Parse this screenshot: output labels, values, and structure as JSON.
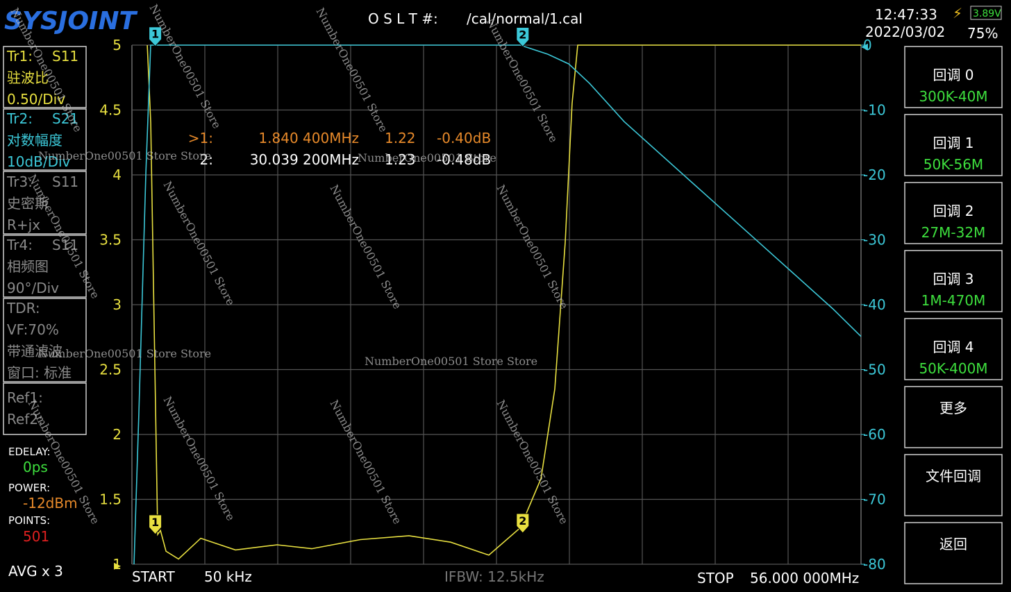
{
  "header": {
    "logo": "SYSJOINT",
    "cal_label": "O S L T #:",
    "cal_file": "/cal/normal/1.cal",
    "time": "12:47:33",
    "date": "2022/03/02",
    "battery_voltage": "3.89V",
    "battery_percent": "75%"
  },
  "traces": [
    {
      "id": "Tr1:",
      "format": "驻波比",
      "scale": "0.50/Div"
    },
    {
      "id": "Tr2:",
      "format": "对数幅度",
      "scale": "10dB/Div"
    },
    {
      "id": "Tr3:",
      "param": "S11",
      "format": "史密斯",
      "scale": "R+jx"
    },
    {
      "id": "Tr4:",
      "param": "S11",
      "format": "相频图",
      "scale": "90°/Div"
    }
  ],
  "tdr": {
    "title": "TDR:",
    "vf": "VF:70%",
    "filter": "带通滤波",
    "window": "窗口: 标准"
  },
  "refs": [
    "Ref1:",
    "Ref2:"
  ],
  "status": {
    "edelay_label": "EDELAY:",
    "edelay": "0ps",
    "power_label": "POWER:",
    "power": "-12dBm",
    "points_label": "POINTS:",
    "points": "501",
    "avg": "AVG x 3"
  },
  "buttons": [
    {
      "title": "回调 0",
      "range": "300K-40M"
    },
    {
      "title": "回调 1",
      "range": "50K-56M"
    },
    {
      "title": "回调 2",
      "range": "27M-32M"
    },
    {
      "title": "回调 3",
      "range": "1M-470M"
    },
    {
      "title": "回调 4",
      "range": "50K-400M"
    },
    {
      "title": "更多"
    },
    {
      "title": "文件回调"
    },
    {
      "title": "返回"
    }
  ],
  "footer": {
    "start_label": "START",
    "start": "50 kHz",
    "ifbw": "IFBW: 12.5kHz",
    "stop_label": "STOP",
    "stop": "56.000 000MHz"
  },
  "watermarks": [
    "NumberOne00501 Store",
    "NumberOne00501 Store",
    "NumberOne00501 Store",
    "NumberOne00501 Store",
    "NumberOne00501 Store",
    "NumberOne00501 Store",
    "NumberOne00501 Store",
    "NumberOne00501 Store",
    "NumberOne00501 Store",
    "NumberOne00501 Store",
    "NumberOne00501 Store",
    "NumberOne00501 Store",
    "NumberOne00501 Store Store",
    "NumberOne00501 Store",
    "NumberOne00501 Store Store",
    "NumberOne00501 Store Store"
  ],
  "chart_data": {
    "type": "line",
    "xlim": [
      0.05,
      56
    ],
    "ylim": [
      1,
      5
    ],
    "yticks": [
      1,
      1.5,
      2,
      2.5,
      3,
      3.5,
      4,
      4.5,
      5
    ],
    "y2lim": [
      -80,
      0
    ],
    "y2ticks": [
      0,
      -10,
      -20,
      -30,
      -40,
      -50,
      -60,
      -70,
      -80
    ],
    "grid": true,
    "series": [
      {
        "name": "S11",
        "color": "#e8e040",
        "x": [
          1.226,
          1.492,
          2.025,
          2.238,
          2.664,
          3.623,
          5.329,
          7.993,
          11.19,
          13.85,
          17.58,
          21.31,
          24.51,
          27.44,
          29.84,
          31.44,
          32.5,
          33.3,
          33.83,
          34.26,
          56
        ],
        "values": [
          5,
          4.4,
          1.23,
          1.26,
          1.1,
          1.04,
          1.2,
          1.11,
          1.15,
          1.12,
          1.19,
          1.22,
          1.17,
          1.07,
          1.28,
          1.66,
          2.35,
          3.48,
          4.55,
          5,
          5
        ]
      },
      {
        "name": "S21",
        "color": "#3cc8d8",
        "axis": "y2",
        "x": [
          0.21,
          0.58,
          1.12,
          1.49,
          29.84,
          31.97,
          33.57,
          35.17,
          37.83,
          43.16,
          48.49,
          53.82,
          56
        ],
        "values": [
          -80,
          -57,
          -19.6,
          0,
          0,
          -1.4,
          -2.9,
          -5.9,
          -11.8,
          -21.4,
          -31,
          -40.6,
          -44.9
        ]
      }
    ],
    "markers": [
      {
        "label": "1",
        "readout": ">1:",
        "x": 1.8404,
        "x_label": "1.840 400MHz",
        "values": [
          1.22,
          -0.4
        ],
        "value_labels": [
          "1.22",
          "-0.40dB"
        ]
      },
      {
        "label": "2",
        "readout": "2:",
        "x": 30.0392,
        "x_label": "30.039 200MHz",
        "values": [
          1.23,
          -0.48
        ],
        "value_labels": [
          "1.23",
          "-0.48dB"
        ]
      }
    ]
  }
}
